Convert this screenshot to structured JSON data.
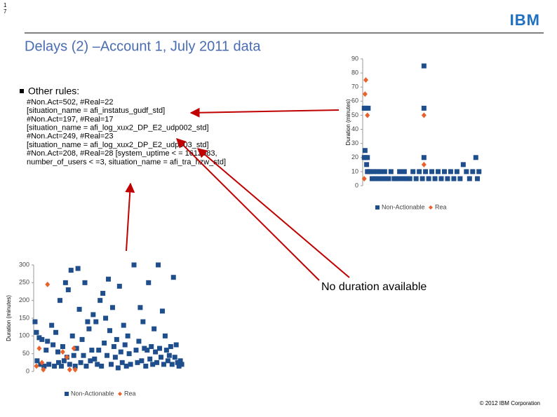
{
  "slide": {
    "page_number": [
      "1",
      "7"
    ],
    "logo": "IBM",
    "title": "Delays (2) –Account 1, July 2011 data",
    "bullet": "Other rules:",
    "rules": [
      "#Non.Act=502, #Real=22",
      " [situation_name = afi_instatus_gudf_std]",
      "#Non.Act=197, #Real=17",
      "[situation_name = afi_log_xux2_DP_E2_udp002_std]",
      "#Non.Act=249, #Real=23",
      "[situation_name = afi_log_xux2_DP_E2_udp003_std]",
      "#Non.Act=208, #Real=28 [system_uptime < = 1612983,",
      "number_of_users < =3, situation_name = afi_tra_hzw_std]"
    ],
    "callout": "No duration available",
    "footer": "© 2012 IBM Corporation"
  },
  "chart_data": [
    {
      "type": "scatter",
      "y_label": "Duration (minutes)",
      "xlim": [
        0,
        150
      ],
      "ylim": [
        0,
        90
      ],
      "yticks": [
        0,
        10,
        20,
        30,
        40,
        50,
        60,
        70,
        80,
        90
      ],
      "series": [
        {
          "name": "Non-Actionable",
          "color": "#1f4e8c",
          "marker": "square",
          "x": [
            3,
            2,
            4,
            6,
            2,
            4,
            7,
            5,
            6,
            8,
            10,
            12,
            14,
            16,
            18,
            20,
            22,
            25,
            28,
            30,
            33,
            36,
            40,
            44,
            47,
            50,
            53,
            56,
            60,
            64,
            68,
            72,
            76,
            78,
            78,
            78,
            80,
            84,
            88,
            92,
            96,
            100,
            104,
            108,
            112,
            116,
            120,
            124,
            128,
            132,
            136,
            140,
            144,
            146,
            148
          ],
          "values": [
            25,
            20,
            20,
            20,
            55,
            55,
            55,
            15,
            10,
            10,
            10,
            5,
            10,
            5,
            10,
            5,
            10,
            5,
            10,
            5,
            5,
            10,
            5,
            5,
            10,
            5,
            10,
            5,
            5,
            10,
            5,
            10,
            5,
            85,
            55,
            20,
            10,
            5,
            10,
            5,
            10,
            5,
            10,
            5,
            10,
            5,
            10,
            5,
            15,
            10,
            5,
            10,
            20,
            5,
            10
          ]
        },
        {
          "name": "Rea",
          "color": "#e8632b",
          "marker": "diamond",
          "x": [
            4,
            3,
            6,
            78,
            78,
            2
          ],
          "values": [
            75,
            65,
            50,
            50,
            15,
            5
          ]
        }
      ]
    },
    {
      "type": "scatter",
      "y_label": "Duration (minutes)",
      "xlim": [
        0,
        220
      ],
      "ylim": [
        0,
        300
      ],
      "yticks": [
        0,
        50,
        100,
        150,
        200,
        250,
        300
      ],
      "series": [
        {
          "name": "Non-Actionable",
          "color": "#1f4e8c",
          "marker": "square",
          "x": [
            2,
            4,
            8,
            12,
            5,
            10,
            15,
            18,
            20,
            22,
            26,
            28,
            30,
            32,
            35,
            36,
            38,
            40,
            42,
            44,
            46,
            48,
            50,
            52,
            54,
            56,
            58,
            60,
            62,
            64,
            66,
            68,
            70,
            72,
            74,
            76,
            78,
            80,
            82,
            84,
            86,
            88,
            90,
            92,
            94,
            96,
            98,
            100,
            102,
            104,
            106,
            108,
            110,
            112,
            114,
            116,
            118,
            120,
            122,
            124,
            126,
            128,
            130,
            132,
            134,
            136,
            138,
            140,
            145,
            148,
            150,
            152,
            154,
            156,
            158,
            160,
            162,
            164,
            166,
            168,
            170,
            172,
            174,
            176,
            178,
            180,
            182,
            184,
            186,
            188,
            190,
            192,
            194,
            196,
            198,
            200,
            202,
            204,
            206,
            208,
            210,
            212,
            214
          ],
          "values": [
            140,
            110,
            95,
            90,
            30,
            20,
            15,
            60,
            85,
            20,
            130,
            75,
            15,
            110,
            55,
            25,
            200,
            15,
            70,
            30,
            250,
            40,
            230,
            20,
            285,
            100,
            45,
            15,
            65,
            290,
            175,
            25,
            90,
            45,
            250,
            15,
            140,
            120,
            30,
            60,
            160,
            35,
            140,
            20,
            60,
            200,
            15,
            220,
            80,
            150,
            45,
            260,
            115,
            20,
            180,
            70,
            40,
            90,
            10,
            240,
            55,
            25,
            130,
            75,
            15,
            100,
            50,
            20,
            300,
            60,
            25,
            85,
            180,
            30,
            140,
            65,
            15,
            60,
            250,
            35,
            70,
            20,
            120,
            55,
            25,
            300,
            65,
            40,
            170,
            20,
            100,
            60,
            30,
            45,
            70,
            20,
            265,
            40,
            75,
            25,
            15,
            30,
            20
          ]
        },
        {
          "name": "Rea",
          "color": "#e8632b",
          "marker": "diamond",
          "x": [
            4,
            8,
            12,
            14,
            20,
            42,
            48,
            52,
            58,
            60
          ],
          "values": [
            15,
            65,
            25,
            5,
            245,
            55,
            40,
            5,
            65,
            5
          ]
        }
      ]
    }
  ]
}
